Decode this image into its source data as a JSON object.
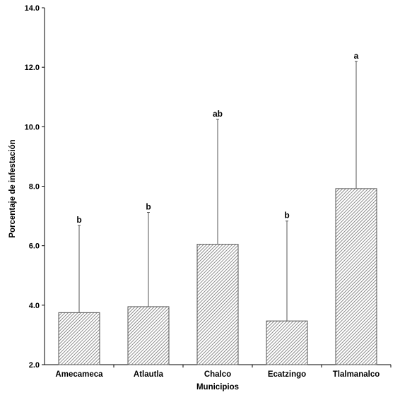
{
  "chart_data": {
    "type": "bar",
    "title": "",
    "xlabel": "Municipios",
    "ylabel": "Porcentaje de infestación",
    "categories": [
      "Amecameca",
      "Atlautla",
      "Chalco",
      "Ecatzingo",
      "Tlalmanalco"
    ],
    "values": [
      3.75,
      3.95,
      6.05,
      3.47,
      7.92
    ],
    "error_upper": [
      6.68,
      7.12,
      10.25,
      6.83,
      12.2
    ],
    "significance_labels": [
      "b",
      "b",
      "ab",
      "b",
      "a"
    ],
    "ylim": [
      2.0,
      14.0
    ],
    "yticks": [
      "2.0",
      "4.0",
      "6.0",
      "8.0",
      "10.0",
      "12.0",
      "14.0"
    ],
    "grid": false,
    "legend": "none",
    "bar_fill": "diagonal-hatch",
    "colors": {
      "bar_stroke": "#555555",
      "hatch": "#6a6a6a",
      "axis": "#000000",
      "error_bar": "#555555"
    }
  }
}
